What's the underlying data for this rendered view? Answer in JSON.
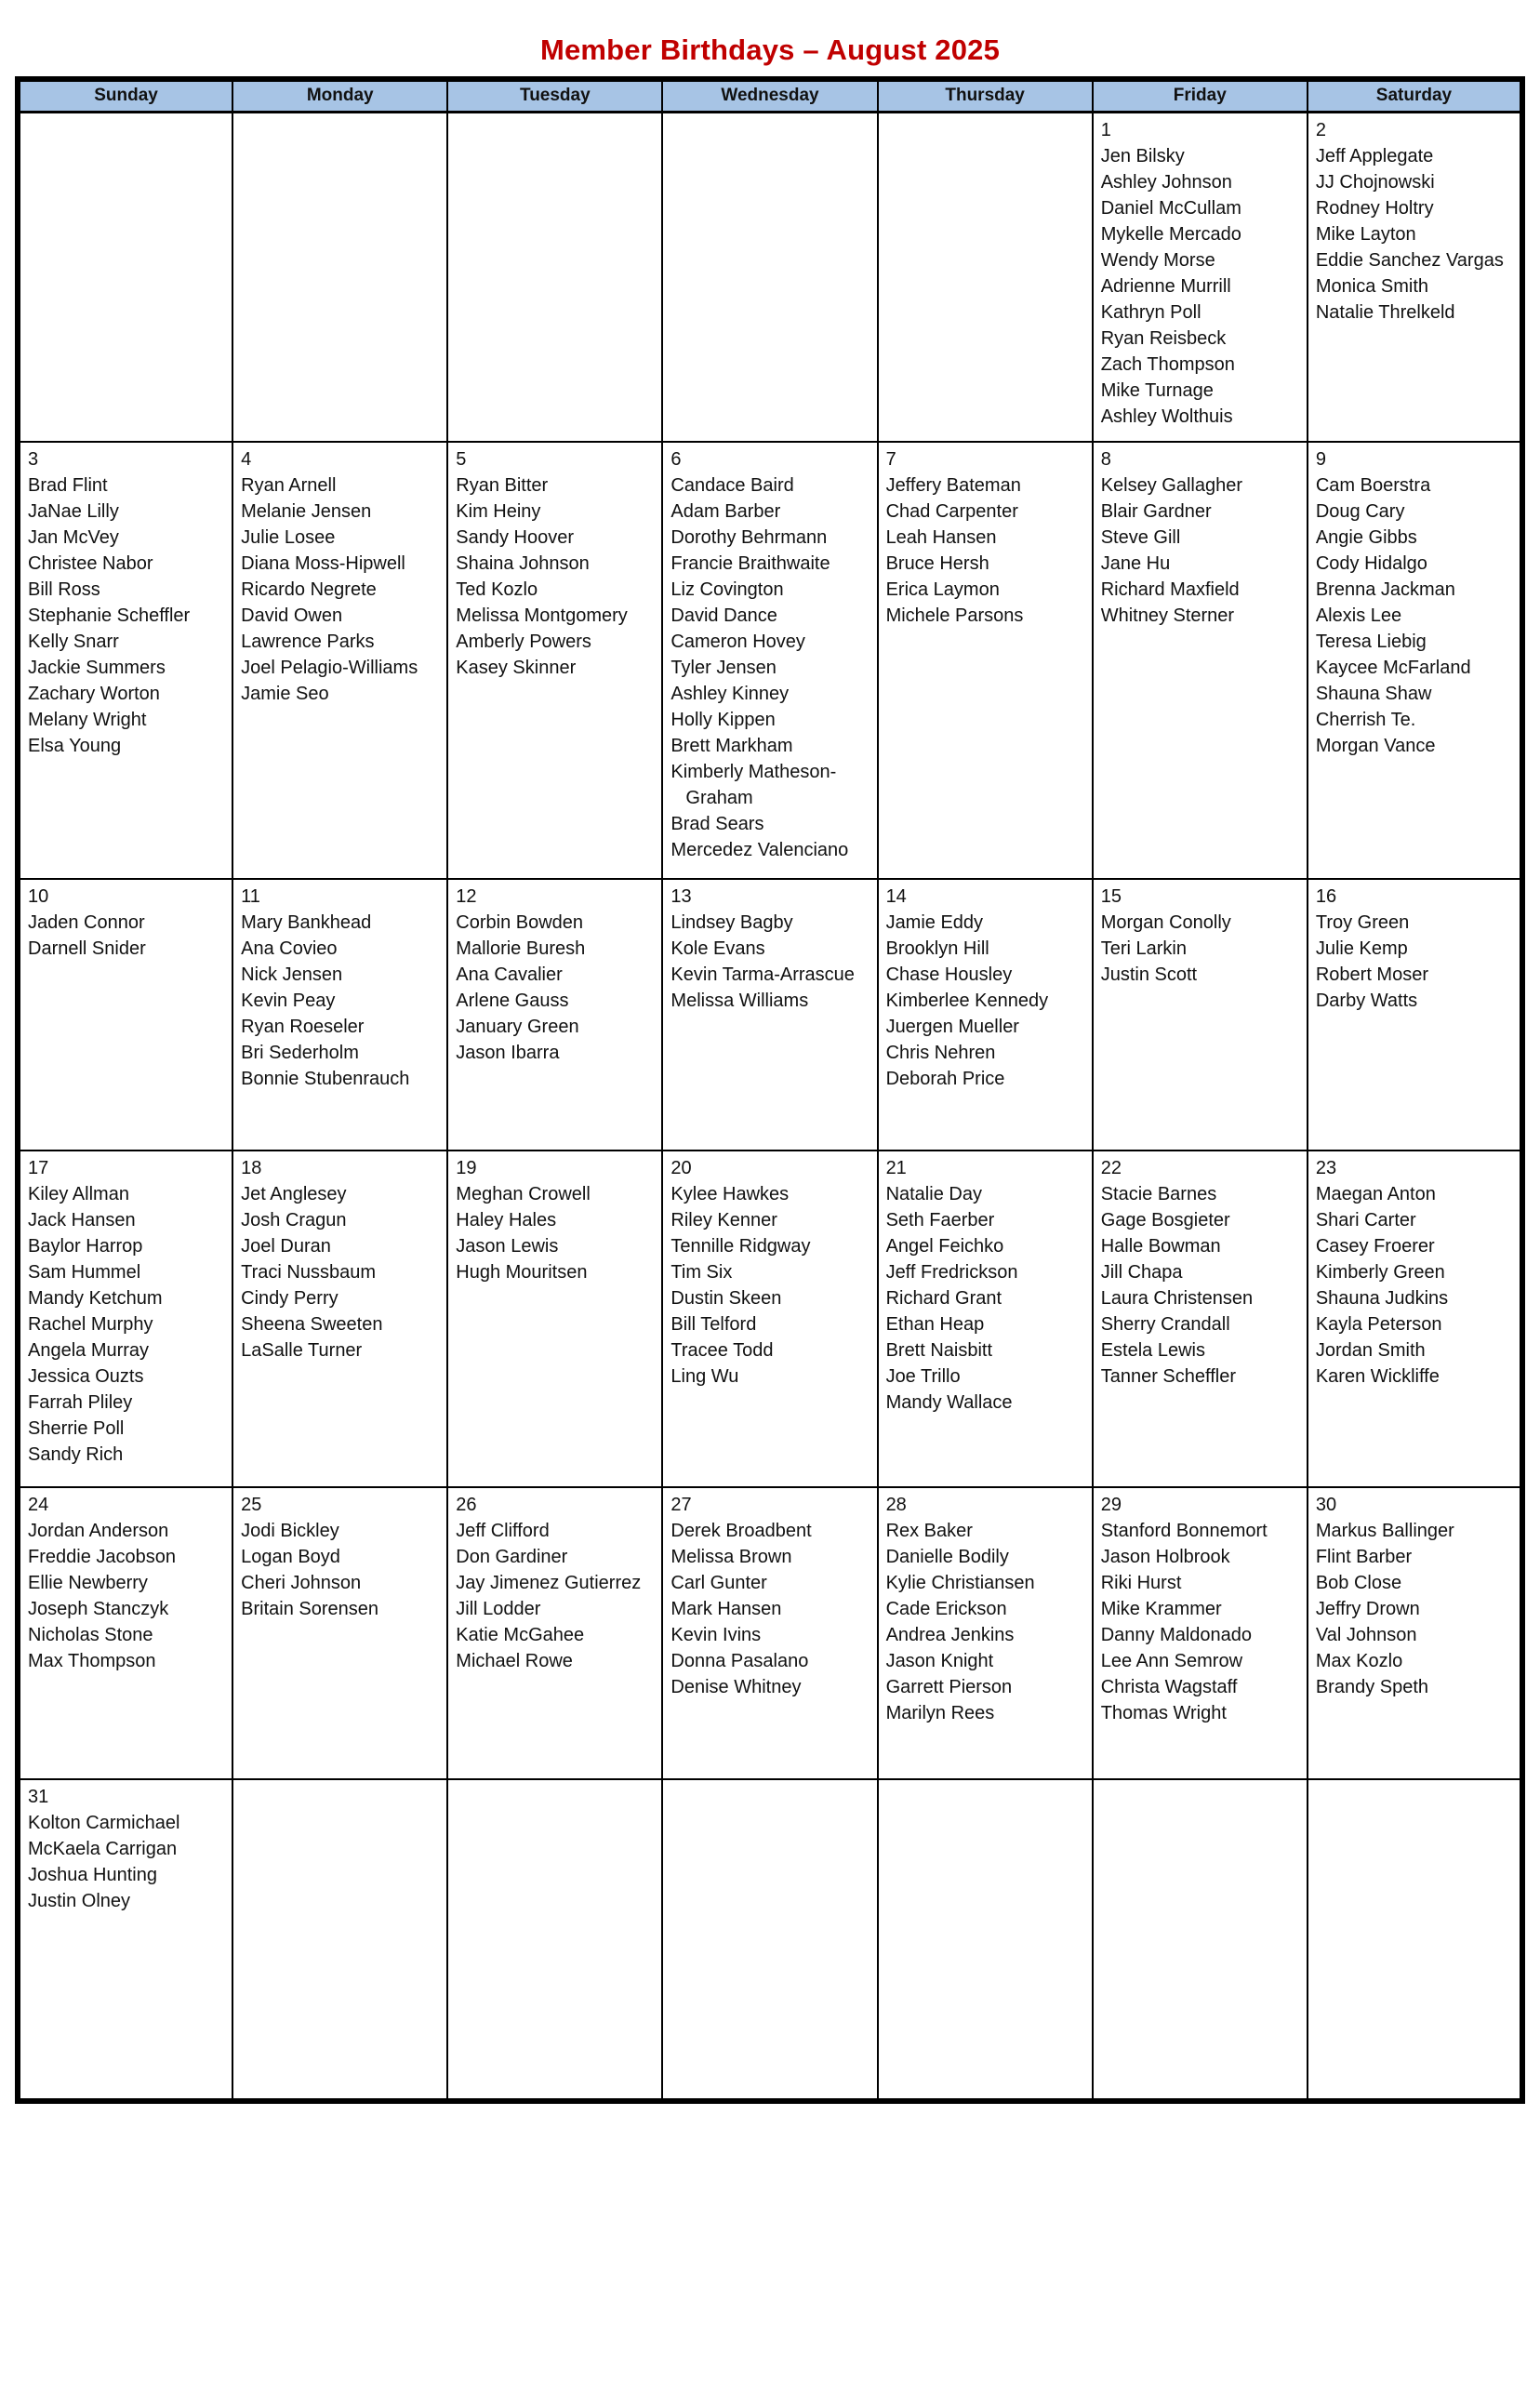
{
  "title": "Member Birthdays – August 2025",
  "colors": {
    "title_red": "#C00000",
    "header_blue": "#A7C4E5",
    "border_black": "#000000"
  },
  "weekday_headers": [
    "Sunday",
    "Monday",
    "Tuesday",
    "Wednesday",
    "Thursday",
    "Friday",
    "Saturday"
  ],
  "weeks": [
    [
      {
        "day": "",
        "names": []
      },
      {
        "day": "",
        "names": []
      },
      {
        "day": "",
        "names": []
      },
      {
        "day": "",
        "names": []
      },
      {
        "day": "",
        "names": []
      },
      {
        "day": "1",
        "names": [
          "Jen Bilsky",
          "Ashley Johnson",
          "Daniel McCullam",
          "Mykelle Mercado",
          "Wendy Morse",
          "Adrienne Murrill",
          "Kathryn Poll",
          "Ryan Reisbeck",
          "Zach Thompson",
          "Mike Turnage",
          "Ashley Wolthuis"
        ]
      },
      {
        "day": "2",
        "names": [
          "Jeff Applegate",
          "JJ Chojnowski",
          "Rodney Holtry",
          "Mike Layton",
          "Eddie Sanchez Vargas",
          "Monica Smith",
          "Natalie Threlkeld"
        ]
      }
    ],
    [
      {
        "day": "3",
        "names": [
          "Brad Flint",
          "JaNae Lilly",
          "Jan McVey",
          "Christee Nabor",
          "Bill Ross",
          "Stephanie Scheffler",
          "Kelly Snarr",
          "Jackie Summers",
          "Zachary Worton",
          "Melany Wright",
          "Elsa Young"
        ]
      },
      {
        "day": "4",
        "names": [
          "Ryan Arnell",
          "Melanie Jensen",
          "Julie Losee",
          "Diana Moss-Hipwell",
          "Ricardo Negrete",
          "David Owen",
          "Lawrence Parks",
          "Joel Pelagio-Williams",
          "Jamie Seo"
        ]
      },
      {
        "day": "5",
        "names": [
          "Ryan Bitter",
          "Kim Heiny",
          "Sandy Hoover",
          "Shaina Johnson",
          "Ted Kozlo",
          "Melissa Montgomery",
          "Amberly Powers",
          "Kasey Skinner"
        ]
      },
      {
        "day": "6",
        "names": [
          "Candace Baird",
          "Adam Barber",
          "Dorothy Behrmann",
          "Francie Braithwaite",
          "Liz Covington",
          "David Dance",
          "Cameron Hovey",
          "Tyler Jensen",
          "Ashley Kinney",
          "Holly Kippen",
          "Brett Markham",
          "Kimberly Matheson-Graham",
          "Brad Sears",
          "Mercedez Valenciano"
        ]
      },
      {
        "day": "7",
        "names": [
          "Jeffery Bateman",
          "Chad Carpenter",
          "Leah Hansen",
          "Bruce Hersh",
          "Erica Laymon",
          "Michele Parsons"
        ]
      },
      {
        "day": "8",
        "names": [
          "Kelsey Gallagher",
          "Blair Gardner",
          "Steve Gill",
          "Jane Hu",
          "Richard Maxfield",
          "Whitney Sterner"
        ]
      },
      {
        "day": "9",
        "names": [
          "Cam Boerstra",
          "Doug Cary",
          "Angie Gibbs",
          "Cody Hidalgo",
          "Brenna Jackman",
          "Alexis Lee",
          "Teresa Liebig",
          "Kaycee McFarland",
          "Shauna Shaw",
          "Cherrish Te.",
          "Morgan Vance"
        ]
      }
    ],
    [
      {
        "day": "10",
        "names": [
          "Jaden Connor",
          "Darnell Snider"
        ]
      },
      {
        "day": "11",
        "names": [
          "Mary Bankhead",
          "Ana Covieo",
          "Nick Jensen",
          "Kevin Peay",
          "Ryan Roeseler",
          "Bri Sederholm",
          "Bonnie Stubenrauch"
        ]
      },
      {
        "day": "12",
        "names": [
          "Corbin Bowden",
          "Mallorie Buresh",
          "Ana Cavalier",
          "Arlene Gauss",
          "January Green",
          "Jason Ibarra"
        ]
      },
      {
        "day": "13",
        "names": [
          "Lindsey Bagby",
          "Kole Evans",
          "Kevin Tarma-Arrascue",
          "Melissa Williams"
        ]
      },
      {
        "day": "14",
        "names": [
          "Jamie Eddy",
          "Brooklyn Hill",
          "Chase Housley",
          "Kimberlee Kennedy",
          "Juergen Mueller",
          "Chris Nehren",
          "Deborah Price"
        ]
      },
      {
        "day": "15",
        "names": [
          "Morgan Conolly",
          "Teri Larkin",
          "Justin Scott"
        ]
      },
      {
        "day": "16",
        "names": [
          "Troy Green",
          "Julie Kemp",
          "Robert Moser",
          "Darby Watts"
        ]
      }
    ],
    [
      {
        "day": "17",
        "names": [
          "Kiley Allman",
          "Jack Hansen",
          "Baylor Harrop",
          "Sam Hummel",
          "Mandy Ketchum",
          "Rachel Murphy",
          "Angela Murray",
          "Jessica Ouzts",
          "Farrah Pliley",
          "Sherrie Poll",
          "Sandy Rich"
        ]
      },
      {
        "day": "18",
        "names": [
          "Jet Anglesey",
          "Josh Cragun",
          "Joel Duran",
          "Traci Nussbaum",
          "Cindy Perry",
          "Sheena Sweeten",
          "LaSalle Turner"
        ]
      },
      {
        "day": "19",
        "names": [
          "Meghan Crowell",
          "Haley Hales",
          "Jason Lewis",
          "Hugh Mouritsen"
        ]
      },
      {
        "day": "20",
        "names": [
          "Kylee Hawkes",
          "Riley Kenner",
          "Tennille Ridgway",
          "Tim Six",
          "Dustin Skeen",
          "Bill Telford",
          "Tracee Todd",
          "Ling Wu"
        ]
      },
      {
        "day": "21",
        "names": [
          "Natalie Day",
          "Seth Faerber",
          "Angel Feichko",
          "Jeff Fredrickson",
          "Richard Grant",
          "Ethan Heap",
          "Brett Naisbitt",
          "Joe Trillo",
          "Mandy Wallace"
        ]
      },
      {
        "day": "22",
        "names": [
          "Stacie Barnes",
          "Gage Bosgieter",
          "Halle Bowman",
          "Jill Chapa",
          "Laura Christensen",
          "Sherry Crandall",
          "Estela Lewis",
          "Tanner Scheffler"
        ]
      },
      {
        "day": "23",
        "names": [
          "Maegan Anton",
          "Shari Carter",
          "Casey Froerer",
          "Kimberly Green",
          "Shauna Judkins",
          "Kayla Peterson",
          "Jordan Smith",
          "Karen Wickliffe"
        ]
      }
    ],
    [
      {
        "day": "24",
        "names": [
          "Jordan Anderson",
          "Freddie Jacobson",
          "Ellie Newberry",
          "Joseph Stanczyk",
          "Nicholas Stone",
          "Max Thompson"
        ]
      },
      {
        "day": "25",
        "names": [
          "Jodi Bickley",
          "Logan Boyd",
          "Cheri Johnson",
          "Britain Sorensen"
        ]
      },
      {
        "day": "26",
        "names": [
          "Jeff Clifford",
          "Don Gardiner",
          "Jay Jimenez Gutierrez",
          "Jill Lodder",
          "Katie McGahee",
          "Michael Rowe"
        ]
      },
      {
        "day": "27",
        "names": [
          "Derek Broadbent",
          "Melissa Brown",
          "Carl Gunter",
          "Mark Hansen",
          "Kevin Ivins",
          "Donna Pasalano",
          "Denise Whitney"
        ]
      },
      {
        "day": "28",
        "names": [
          "Rex Baker",
          "Danielle Bodily",
          "Kylie Christiansen",
          "Cade Erickson",
          "Andrea Jenkins",
          "Jason Knight",
          "Garrett Pierson",
          "Marilyn Rees"
        ]
      },
      {
        "day": "29",
        "names": [
          "Stanford Bonnemort",
          "Jason Holbrook",
          "Riki Hurst",
          "Mike Krammer",
          "Danny Maldonado",
          "Lee Ann Semrow",
          "Christa Wagstaff",
          "Thomas Wright"
        ]
      },
      {
        "day": "30",
        "names": [
          "Markus Ballinger",
          "Flint Barber",
          "Bob Close",
          "Jeffry Drown",
          "Val Johnson",
          "Max Kozlo",
          "Brandy Speth"
        ]
      }
    ],
    [
      {
        "day": "31",
        "names": [
          "Kolton Carmichael",
          "McKaela Carrigan",
          "Joshua Hunting",
          "Justin Olney"
        ]
      },
      {
        "day": "",
        "names": []
      },
      {
        "day": "",
        "names": []
      },
      {
        "day": "",
        "names": []
      },
      {
        "day": "",
        "names": []
      },
      {
        "day": "",
        "names": []
      },
      {
        "day": "",
        "names": []
      }
    ]
  ]
}
